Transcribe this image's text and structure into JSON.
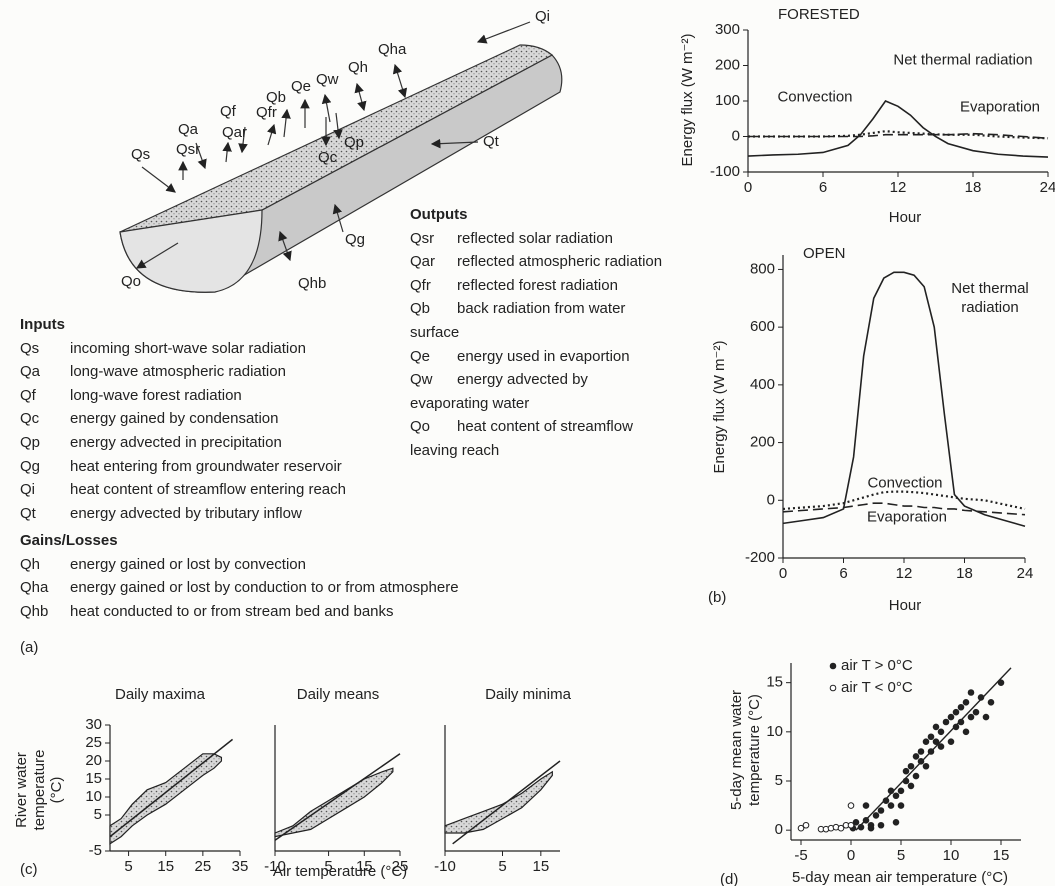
{
  "diagram": {
    "labels": [
      "Qi",
      "Qha",
      "Qh",
      "Qw",
      "Qe",
      "Qb",
      "Qfr",
      "Qf",
      "Qar",
      "Qa",
      "Qsr",
      "Qs",
      "Qp",
      "Qc",
      "Qt",
      "Qg",
      "Qhb",
      "Qo"
    ]
  },
  "outputs": {
    "heading": "Outputs",
    "items": [
      {
        "code": "Qsr",
        "text": "reflected solar radiation"
      },
      {
        "code": "Qar",
        "text": "reflected atmospheric radiation"
      },
      {
        "code": "Qfr",
        "text": "reflected forest radiation"
      },
      {
        "code": "Qb",
        "text": "back radiation from water",
        "continuation": "surface"
      },
      {
        "code": "Qe",
        "text": "energy used in evaportion"
      },
      {
        "code": "Qw",
        "text": "energy advected by",
        "continuation": "evaporating water"
      },
      {
        "code": "Qo",
        "text": "heat content of streamflow",
        "continuation": "leaving reach"
      }
    ]
  },
  "inputs": {
    "heading": "Inputs",
    "items": [
      {
        "code": "Qs",
        "text": "incoming short-wave solar radiation"
      },
      {
        "code": "Qa",
        "text": "long-wave atmospheric radiation"
      },
      {
        "code": "Qf",
        "text": "long-wave forest radiation"
      },
      {
        "code": "Qc",
        "text": "energy gained by condensation"
      },
      {
        "code": "Qp",
        "text": "energy advected in precipitation"
      },
      {
        "code": "Qg",
        "text": "heat entering from groundwater reservoir"
      },
      {
        "code": "Qi",
        "text": "heat content of streamflow entering reach"
      },
      {
        "code": "Qt",
        "text": "energy advected by tributary inflow"
      }
    ]
  },
  "gains_losses": {
    "heading": "Gains/Losses",
    "items": [
      {
        "code": "Qh",
        "text": "energy gained or lost by convection"
      },
      {
        "code": "Qha",
        "text": "energy gained or lost by conduction to or from atmosphere"
      },
      {
        "code": "Qhb",
        "text": "heat conducted to or from stream bed and banks"
      }
    ]
  },
  "panel_labels": [
    "(a)",
    "(b)",
    "(c)",
    "(d)"
  ],
  "chart_data": [
    {
      "type": "line",
      "title": "FORESTED",
      "xlabel": "Hour",
      "ylabel": "Energy flux (W m⁻²)",
      "xlim": [
        0,
        24
      ],
      "xticks": [
        0,
        6,
        12,
        18,
        24
      ],
      "ylim": [
        -100,
        300
      ],
      "yticks": [
        -100,
        0,
        100,
        200,
        300
      ],
      "x": [
        0,
        2,
        4,
        6,
        8,
        9,
        10,
        11,
        12,
        13,
        14,
        15,
        16,
        18,
        20,
        22,
        24
      ],
      "series": [
        {
          "name": "Net thermal radiation",
          "style": "solid",
          "color": "#222222",
          "values": [
            -55,
            -52,
            -50,
            -45,
            -25,
            5,
            50,
            100,
            85,
            60,
            25,
            0,
            -20,
            -40,
            -50,
            -55,
            -58
          ]
        },
        {
          "name": "Convection",
          "style": "dotted",
          "color": "#222222",
          "values": [
            0,
            0,
            0,
            0,
            2,
            5,
            10,
            15,
            12,
            10,
            8,
            6,
            5,
            5,
            0,
            -3,
            -5
          ]
        },
        {
          "name": "Evaporation",
          "style": "dashed",
          "color": "#222222",
          "values": [
            0,
            0,
            0,
            0,
            0,
            0,
            2,
            5,
            5,
            5,
            5,
            5,
            5,
            8,
            5,
            0,
            -5
          ]
        }
      ]
    },
    {
      "type": "line",
      "title": "OPEN",
      "xlabel": "Hour",
      "ylabel": "Energy flux (W m⁻²)",
      "xlim": [
        0,
        24
      ],
      "xticks": [
        0,
        6,
        12,
        18,
        24
      ],
      "ylim": [
        -200,
        850
      ],
      "yticks": [
        -200,
        0,
        200,
        400,
        600,
        800
      ],
      "x": [
        0,
        2,
        4,
        6,
        7,
        8,
        9,
        10,
        11,
        12,
        13,
        14,
        15,
        16,
        17,
        18,
        20,
        22,
        24
      ],
      "series": [
        {
          "name": "Net thermal radiation",
          "style": "solid",
          "color": "#222222",
          "values": [
            -80,
            -70,
            -60,
            -30,
            150,
            500,
            700,
            770,
            790,
            790,
            780,
            740,
            600,
            300,
            20,
            -20,
            -50,
            -70,
            -90
          ]
        },
        {
          "name": "Convection",
          "style": "dotted",
          "color": "#222222",
          "values": [
            -30,
            -25,
            -20,
            -10,
            0,
            10,
            20,
            28,
            30,
            30,
            28,
            25,
            20,
            15,
            10,
            5,
            0,
            -15,
            -30
          ]
        },
        {
          "name": "Evaporation",
          "style": "dashed",
          "color": "#222222",
          "values": [
            -40,
            -35,
            -30,
            -25,
            -20,
            -15,
            -10,
            -10,
            -15,
            -20,
            -20,
            -25,
            -25,
            -30,
            -30,
            -35,
            -40,
            -45,
            -50
          ]
        }
      ]
    },
    {
      "type": "envelope",
      "title": "Daily maxima",
      "ylabel": [
        "River water",
        "temperature",
        "(°C)"
      ],
      "xlim": [
        0,
        35
      ],
      "xticks": [
        5,
        15,
        25,
        35
      ],
      "ylim": [
        -5,
        30
      ],
      "yticks": [
        -5,
        5,
        10,
        15,
        20,
        25,
        30
      ],
      "x": [
        0,
        3,
        6,
        10,
        15,
        20,
        25,
        28,
        30
      ],
      "upper": [
        2,
        4,
        8,
        12,
        14,
        18,
        22,
        22,
        21
      ],
      "lower": [
        -3,
        -1,
        2,
        5,
        8,
        12,
        16,
        18,
        20
      ],
      "line": {
        "x": [
          0,
          33
        ],
        "y": [
          -1,
          26
        ]
      }
    },
    {
      "type": "envelope",
      "title": "Daily means",
      "xlabel": "Air temperature (°C)",
      "xlim": [
        -10,
        25
      ],
      "xticks": [
        -10,
        5,
        15,
        25
      ],
      "ylim": [
        -5,
        30
      ],
      "x": [
        -10,
        -5,
        0,
        5,
        10,
        15,
        20,
        23
      ],
      "upper": [
        0,
        2,
        6,
        9,
        12,
        15,
        17,
        18
      ],
      "lower": [
        -1,
        0,
        1,
        4,
        7,
        10,
        14,
        17
      ],
      "line": {
        "x": [
          -10,
          25
        ],
        "y": [
          -2,
          22
        ]
      }
    },
    {
      "type": "envelope",
      "title": "Daily minima",
      "xlim": [
        -10,
        20
      ],
      "xticks": [
        -10,
        5,
        15
      ],
      "ylim": [
        -5,
        30
      ],
      "x": [
        -10,
        -5,
        0,
        5,
        10,
        15,
        18
      ],
      "upper": [
        2,
        4,
        6,
        8,
        11,
        15,
        17
      ],
      "lower": [
        0,
        0,
        1,
        4,
        7,
        12,
        16
      ],
      "line": {
        "x": [
          -8,
          20
        ],
        "y": [
          -3,
          20
        ]
      }
    },
    {
      "type": "scatter",
      "xlabel": "5-day mean air temperature (°C)",
      "ylabel": [
        "5-day mean water",
        "temperature (°C)"
      ],
      "xlim": [
        -6,
        17
      ],
      "xticks": [
        -5,
        0,
        5,
        10,
        15
      ],
      "ylim": [
        -1,
        17
      ],
      "yticks": [
        0,
        5,
        10,
        15
      ],
      "series": [
        {
          "name": "air T > 0°C",
          "marker": "filled",
          "color": "#222222",
          "x": [
            0.2,
            0.5,
            1,
            1.5,
            2,
            2.5,
            3,
            3,
            3.5,
            4,
            4,
            4.5,
            5,
            5,
            5.5,
            5.5,
            6,
            6,
            6.5,
            6.5,
            7,
            7,
            7.5,
            7.5,
            8,
            8,
            8.5,
            8.5,
            9,
            9,
            9.5,
            10,
            10,
            10.5,
            10.5,
            11,
            11,
            11.5,
            11.5,
            12,
            12,
            12.5,
            13,
            13.5,
            14,
            15,
            2,
            1.5,
            4.5
          ],
          "y": [
            0.2,
            0.8,
            0.3,
            1,
            0.5,
            1.5,
            0.5,
            2,
            3,
            2.5,
            4,
            3.5,
            4,
            2.5,
            5,
            6,
            4.5,
            6.5,
            5.5,
            7.5,
            7,
            8,
            6.5,
            9,
            8,
            9.5,
            9,
            10.5,
            8.5,
            10,
            11,
            9,
            11.5,
            10.5,
            12,
            11,
            12.5,
            10,
            13,
            11.5,
            14,
            12,
            13.5,
            11.5,
            13,
            15,
            0.2,
            2.5,
            0.8
          ]
        },
        {
          "name": "air T < 0°C",
          "marker": "open",
          "color": "#222222",
          "x": [
            -5,
            -4.5,
            -3,
            -2.5,
            -2,
            -1.5,
            -1,
            -0.5,
            0,
            0
          ],
          "y": [
            0.2,
            0.5,
            0.1,
            0.1,
            0.2,
            0.3,
            0.2,
            0.5,
            2.5,
            0.5
          ]
        }
      ],
      "fit": {
        "x": [
          0.5,
          16
        ],
        "y": [
          0,
          16.5
        ]
      }
    }
  ]
}
